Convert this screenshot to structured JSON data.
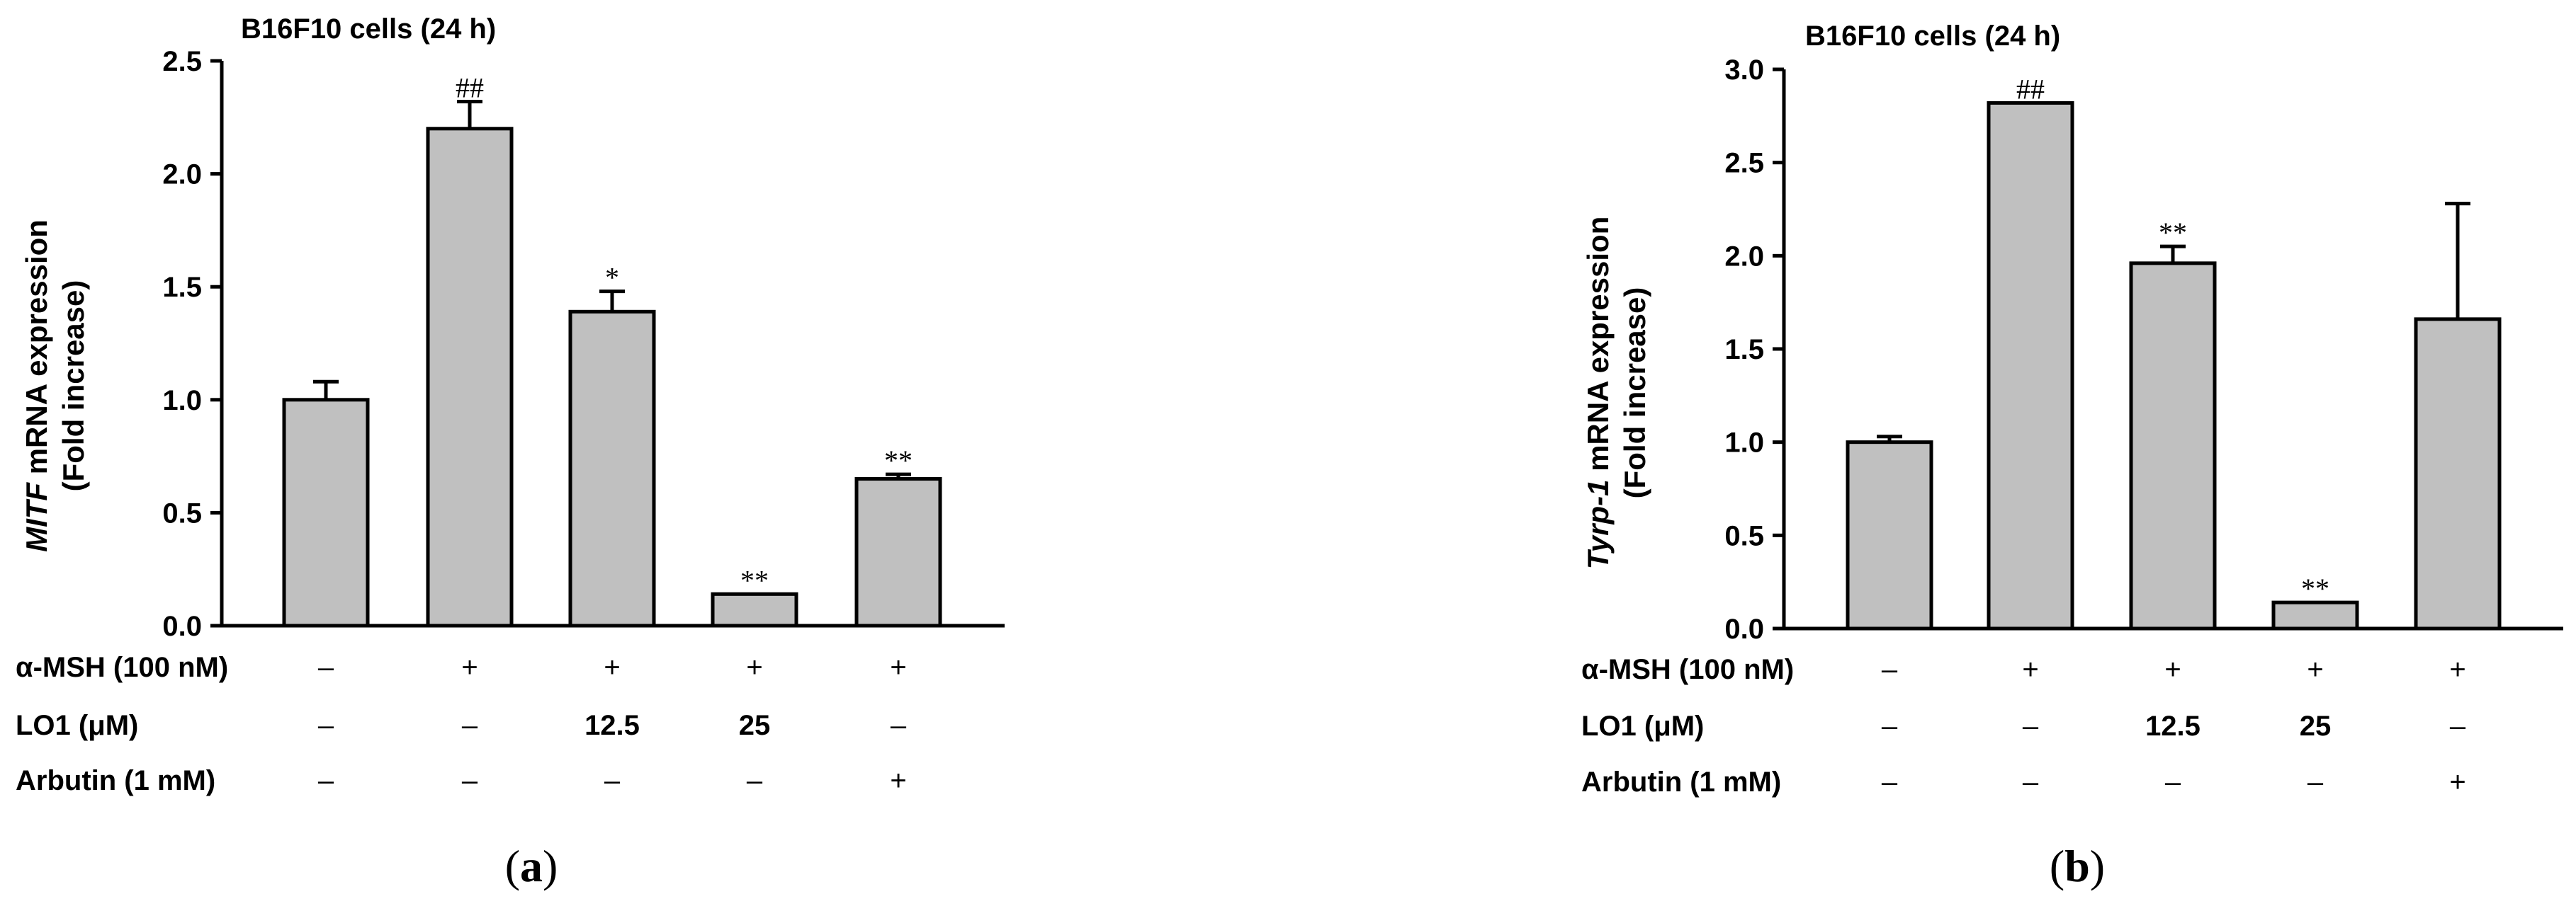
{
  "panels": [
    {
      "panel_label": "(a)",
      "panel_letter": "a",
      "row_labels": [
        "α-MSH (100 nM)",
        "LO1 (μM)",
        "Arbutin (1 mM)"
      ],
      "treatments": [
        [
          "–",
          "+",
          "+",
          "+",
          "+"
        ],
        [
          "–",
          "–",
          "12.5",
          "25",
          "–"
        ],
        [
          "–",
          "–",
          "–",
          "–",
          "+"
        ]
      ]
    },
    {
      "panel_label": "(b)",
      "panel_letter": "b",
      "row_labels": [
        "α-MSH (100 nM)",
        "LO1 (μM)",
        "Arbutin (1 mM)"
      ],
      "treatments": [
        [
          "–",
          "+",
          "+",
          "+",
          "+"
        ],
        [
          "–",
          "–",
          "12.5",
          "25",
          "–"
        ],
        [
          "–",
          "–",
          "–",
          "–",
          "+"
        ]
      ]
    }
  ],
  "chart_data": [
    {
      "type": "bar",
      "title": "B16F10 cells (24 h)",
      "ylabel_italic": "MITF",
      "ylabel_rest": " mRNA expression",
      "ylabel_line2": "(Fold increase)",
      "ylim": [
        0,
        2.5
      ],
      "yticks": [
        "0.0",
        "0.5",
        "1.0",
        "1.5",
        "2.0",
        "2.5"
      ],
      "values": [
        1.0,
        2.2,
        1.39,
        0.14,
        0.65
      ],
      "errors": [
        0.08,
        0.12,
        0.09,
        0.0,
        0.02
      ],
      "annotations": [
        "",
        "##",
        "*",
        "**",
        "**"
      ],
      "bar_color": "#c0c0c0",
      "grid": false
    },
    {
      "type": "bar",
      "title": "B16F10 cells (24 h)",
      "ylabel_italic": "Tyrp-1",
      "ylabel_rest": " mRNA expression",
      "ylabel_line2": "(Fold increase)",
      "ylim": [
        0,
        3.0
      ],
      "yticks": [
        "0.0",
        "0.5",
        "1.0",
        "1.5",
        "2.0",
        "2.5",
        "3.0"
      ],
      "values": [
        1.0,
        2.82,
        1.96,
        0.14,
        1.66
      ],
      "errors": [
        0.03,
        0.0,
        0.09,
        0.0,
        0.62
      ],
      "annotations": [
        "",
        "##",
        "**",
        "**",
        ""
      ],
      "bar_color": "#c0c0c0",
      "grid": false
    }
  ]
}
